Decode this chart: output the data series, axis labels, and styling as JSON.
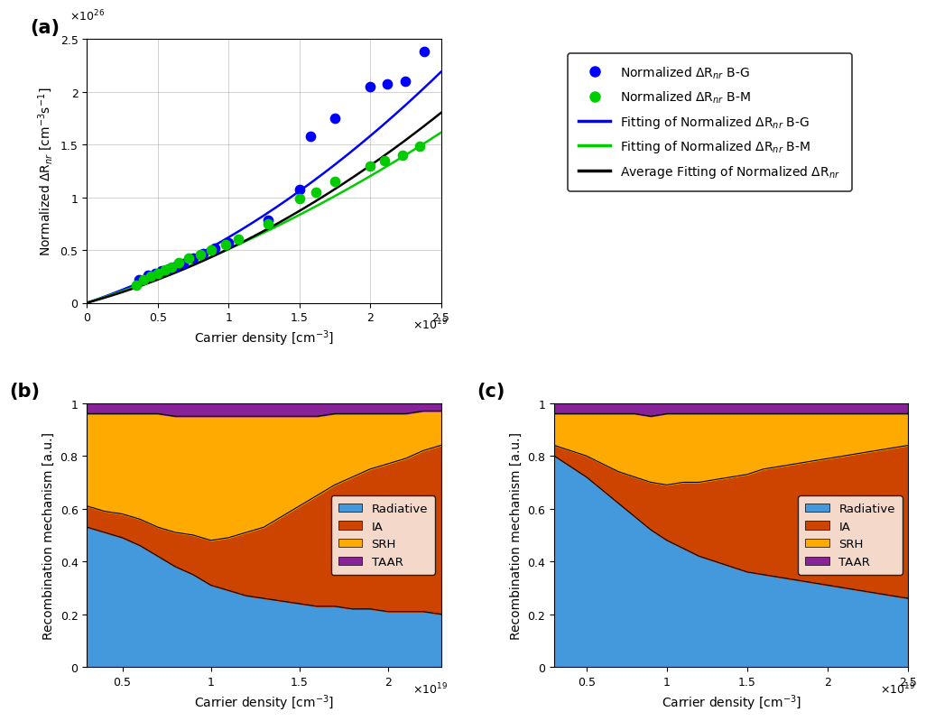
{
  "panel_a": {
    "blue_dots_x": [
      0.37,
      0.43,
      0.48,
      0.53,
      0.58,
      0.63,
      0.68,
      0.75,
      0.82,
      0.9,
      1.0,
      1.28,
      1.5,
      1.58,
      1.75,
      2.0,
      2.12,
      2.25,
      2.38
    ],
    "blue_dots_y": [
      0.22,
      0.26,
      0.28,
      0.3,
      0.32,
      0.35,
      0.37,
      0.42,
      0.47,
      0.52,
      0.57,
      0.78,
      1.07,
      1.58,
      1.75,
      2.05,
      2.07,
      2.1,
      2.38
    ],
    "green_dots_x": [
      0.35,
      0.4,
      0.45,
      0.5,
      0.55,
      0.6,
      0.65,
      0.72,
      0.8,
      0.88,
      0.98,
      1.07,
      1.28,
      1.5,
      1.62,
      1.75,
      2.0,
      2.1,
      2.23,
      2.35
    ],
    "green_dots_y": [
      0.17,
      0.22,
      0.25,
      0.28,
      0.31,
      0.34,
      0.38,
      0.42,
      0.46,
      0.5,
      0.55,
      0.6,
      0.75,
      0.99,
      1.05,
      1.15,
      1.3,
      1.35,
      1.4,
      1.48
    ],
    "blue_fit_params": [
      0.32,
      0.12,
      0.0
    ],
    "green_fit_params": [
      0.24,
      0.1,
      0.0
    ],
    "avg_fit_params": [
      0.28,
      0.08,
      0.0
    ],
    "xlim": [
      0,
      2.5
    ],
    "ylim": [
      0,
      2.5
    ],
    "xlabel": "Carrier density [cm$^{-3}$]",
    "ylabel": "Normalized $\\Delta$R$_{nr}$ [cm$^{-3}$s$^{-1}$]",
    "xscale_exp": 19,
    "yscale_exp": 26,
    "grid": true,
    "blue_dot_color": "#0000FF",
    "green_dot_color": "#00CC00",
    "blue_line_color": "#0000FF",
    "green_line_color": "#00CC00",
    "avg_line_color": "#000000",
    "label_a": "(a)"
  },
  "panel_b": {
    "x": [
      0.3,
      0.35,
      0.4,
      0.5,
      0.6,
      0.7,
      0.8,
      0.9,
      1.0,
      1.1,
      1.2,
      1.3,
      1.4,
      1.5,
      1.6,
      1.7,
      1.8,
      1.9,
      2.0,
      2.1,
      2.2,
      2.3
    ],
    "radiative": [
      0.53,
      0.52,
      0.51,
      0.49,
      0.46,
      0.42,
      0.38,
      0.35,
      0.31,
      0.29,
      0.27,
      0.26,
      0.25,
      0.24,
      0.23,
      0.23,
      0.22,
      0.22,
      0.21,
      0.21,
      0.21,
      0.2
    ],
    "ia": [
      0.08,
      0.08,
      0.08,
      0.09,
      0.1,
      0.11,
      0.13,
      0.15,
      0.17,
      0.2,
      0.24,
      0.27,
      0.32,
      0.37,
      0.42,
      0.46,
      0.5,
      0.53,
      0.56,
      0.58,
      0.61,
      0.64
    ],
    "srh": [
      0.35,
      0.36,
      0.37,
      0.38,
      0.4,
      0.43,
      0.44,
      0.45,
      0.47,
      0.46,
      0.44,
      0.42,
      0.38,
      0.34,
      0.3,
      0.27,
      0.24,
      0.21,
      0.19,
      0.17,
      0.15,
      0.13
    ],
    "taar": [
      0.04,
      0.04,
      0.04,
      0.04,
      0.04,
      0.04,
      0.05,
      0.05,
      0.05,
      0.05,
      0.05,
      0.05,
      0.05,
      0.05,
      0.05,
      0.04,
      0.04,
      0.04,
      0.04,
      0.04,
      0.03,
      0.03
    ],
    "xlim": [
      0.3,
      2.3
    ],
    "ylim": [
      0,
      1
    ],
    "xlabel": "Carrier density [cm$^{-3}$]",
    "ylabel": "Recombination mechanism [a.u.]",
    "xscale_exp": 19,
    "label_b": "(b)",
    "xticks": [
      0.5,
      1.0,
      1.5,
      2.0
    ],
    "xtick_labels": [
      "0.5",
      "1",
      "1.5",
      "2"
    ]
  },
  "panel_c": {
    "x": [
      0.3,
      0.35,
      0.4,
      0.5,
      0.6,
      0.7,
      0.8,
      0.9,
      1.0,
      1.1,
      1.2,
      1.3,
      1.4,
      1.5,
      1.6,
      1.7,
      1.8,
      1.9,
      2.0,
      2.1,
      2.2,
      2.3,
      2.4,
      2.5
    ],
    "radiative": [
      0.8,
      0.78,
      0.76,
      0.72,
      0.67,
      0.62,
      0.57,
      0.52,
      0.48,
      0.45,
      0.42,
      0.4,
      0.38,
      0.36,
      0.35,
      0.34,
      0.33,
      0.32,
      0.31,
      0.3,
      0.29,
      0.28,
      0.27,
      0.26
    ],
    "ia": [
      0.04,
      0.05,
      0.06,
      0.08,
      0.1,
      0.12,
      0.15,
      0.18,
      0.21,
      0.25,
      0.28,
      0.31,
      0.34,
      0.37,
      0.4,
      0.42,
      0.44,
      0.46,
      0.48,
      0.5,
      0.52,
      0.54,
      0.56,
      0.58
    ],
    "srh": [
      0.12,
      0.13,
      0.14,
      0.16,
      0.19,
      0.22,
      0.24,
      0.25,
      0.27,
      0.26,
      0.26,
      0.25,
      0.24,
      0.23,
      0.21,
      0.2,
      0.19,
      0.18,
      0.17,
      0.16,
      0.15,
      0.14,
      0.13,
      0.12
    ],
    "taar": [
      0.04,
      0.04,
      0.04,
      0.04,
      0.04,
      0.04,
      0.04,
      0.05,
      0.04,
      0.04,
      0.04,
      0.04,
      0.04,
      0.04,
      0.04,
      0.04,
      0.04,
      0.04,
      0.04,
      0.04,
      0.04,
      0.04,
      0.04,
      0.04
    ],
    "xlim": [
      0.3,
      2.5
    ],
    "ylim": [
      0,
      1
    ],
    "xlabel": "Carrier density [cm$^{-3}$]",
    "ylabel": "Recombination mechanism [a.u.]",
    "xscale_exp": 19,
    "label_c": "(c)",
    "xticks": [
      0.5,
      1.0,
      1.5,
      2.0,
      2.5
    ],
    "xtick_labels": [
      "0.5",
      "1",
      "1.5",
      "2",
      "2.5"
    ]
  },
  "colors": {
    "radiative": "#4499DD",
    "ia": "#CC4400",
    "srh": "#FFAA00",
    "taar": "#882299"
  },
  "legend_labels": {
    "blue_dot": "Normalized $\\Delta$R$_{nr}$ B-G",
    "green_dot": "Normalized $\\Delta$R$_{nr}$ B-M",
    "blue_fit": "Fitting of Normalized $\\Delta$R$_{nr}$ B-G",
    "green_fit": "Fitting of Normalized $\\Delta$R$_{nr}$ B-M",
    "avg_fit": "Average Fitting of Normalized $\\Delta$R$_{nr}$"
  }
}
